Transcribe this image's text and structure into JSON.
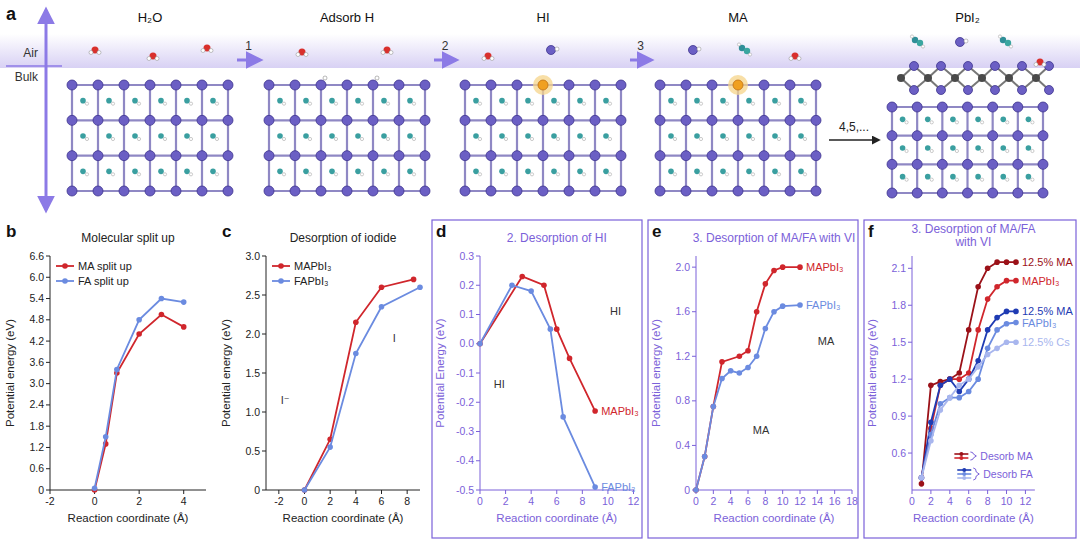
{
  "schematic": {
    "panel": "a",
    "air": "Air",
    "bulk": "Bulk",
    "stages": [
      "H₂O",
      "Adsorb H",
      "HI",
      "MA",
      "PbI₂"
    ],
    "steps": [
      "1",
      "2",
      "3",
      "4,5,..."
    ]
  },
  "chart_data": [
    {
      "panel": "b",
      "type": "line",
      "title": "Molecular split up",
      "x_label": "Reaction coordinate (Å)",
      "y_label": "Potential energy (eV)",
      "xlim": [
        -2,
        5
      ],
      "ylim": [
        0,
        6.6
      ],
      "xticks": [
        -2,
        0,
        2,
        4
      ],
      "yticks": [
        0,
        0.6,
        1.2,
        1.8,
        2.4,
        {
          "value": 3,
          "label": "3.0"
        },
        3.6,
        4.2,
        4.8,
        5.4,
        {
          "value": 6,
          "label": "6.0"
        },
        6.6
      ],
      "legend": "upper left",
      "marker": "circle",
      "series": [
        {
          "name": "MA split up",
          "color": "#d0262c",
          "x": [
            0,
            0.5,
            1,
            2,
            3,
            4
          ],
          "values": [
            0,
            1.3,
            3.3,
            4.4,
            4.95,
            4.6
          ]
        },
        {
          "name": "FA split up",
          "color": "#6b8be0",
          "x": [
            0,
            0.5,
            1,
            2,
            3,
            4
          ],
          "values": [
            0.05,
            1.5,
            3.4,
            4.8,
            5.4,
            5.3
          ]
        }
      ]
    },
    {
      "panel": "c",
      "type": "line",
      "title": "Desorption of iodide",
      "x_label": "Reaction coordinate (Å)",
      "y_label": "Potential energy (eV)",
      "xlim": [
        -3,
        9
      ],
      "ylim": [
        0,
        3
      ],
      "xticks": [
        -2,
        0,
        2,
        4,
        6,
        8
      ],
      "yticks": [
        0,
        0.5,
        {
          "value": 1,
          "label": "1.0"
        },
        1.5,
        {
          "value": 2,
          "label": "2.0"
        },
        2.5,
        {
          "value": 3,
          "label": "3.0"
        }
      ],
      "legend": "upper left",
      "marker": "circle",
      "series": [
        {
          "name": "MAPbI₃",
          "color": "#d0262c",
          "x": [
            0,
            2,
            4,
            6,
            8.5
          ],
          "values": [
            0,
            0.65,
            2.15,
            2.6,
            2.7
          ]
        },
        {
          "name": "FAPbI₃",
          "color": "#6b8be0",
          "x": [
            0,
            2,
            4,
            6,
            9
          ],
          "values": [
            0,
            0.55,
            1.75,
            2.35,
            2.6
          ]
        }
      ],
      "annotations": [
        {
          "text": "I⁻",
          "x": -1.5,
          "y": 1.1
        },
        {
          "text": "I",
          "x": 7,
          "y": 1.9
        }
      ]
    },
    {
      "panel": "d",
      "type": "line",
      "title": "2. Desorption of HI",
      "x_label": "Reaction coordinate (Å)",
      "y_label": "Potential Energy (eV)",
      "color": "#7b61d9",
      "xlim": [
        0,
        12
      ],
      "ylim": [
        -0.5,
        0.3
      ],
      "xticks": [
        0,
        2,
        4,
        6,
        8,
        10,
        12
      ],
      "yticks": [
        -0.5,
        -0.4,
        -0.3,
        -0.2,
        -0.1,
        {
          "value": 0,
          "label": "0.0"
        },
        0.1,
        0.2,
        0.3
      ],
      "legend": "inline",
      "marker": "circle",
      "series": [
        {
          "name": "MAPbI₃",
          "color": "#d0262c",
          "x": [
            0,
            3.3,
            5,
            6,
            7,
            9
          ],
          "values": [
            0,
            0.23,
            0.2,
            0.05,
            -0.05,
            -0.23
          ]
        },
        {
          "name": "FAPbI₃",
          "color": "#6b8be0",
          "x": [
            0,
            2.5,
            4,
            5.5,
            6.5,
            9
          ],
          "values": [
            0,
            0.2,
            0.18,
            0.05,
            -0.25,
            -0.49
          ]
        }
      ],
      "annotations": [
        {
          "text": "HI",
          "x": 1.5,
          "y": -0.15
        },
        {
          "text": "HI",
          "x": 10.6,
          "y": 0.1
        }
      ]
    },
    {
      "panel": "e",
      "type": "line",
      "title": "3. Desorption of MA/FA with VI",
      "x_label": "Reaction coordinate (Å)",
      "y_label": "Potential energy (eV)",
      "color": "#7b61d9",
      "xlim": [
        0,
        18
      ],
      "ylim": [
        0,
        2.1
      ],
      "xticks": [
        0,
        2,
        4,
        6,
        8,
        10,
        12,
        14,
        16,
        18
      ],
      "yticks": [
        0,
        0.4,
        0.8,
        1.2,
        1.6,
        {
          "value": 2,
          "label": "2.0"
        }
      ],
      "legend": "inline",
      "marker": "circle",
      "series": [
        {
          "name": "MAPbI₃",
          "color": "#d0262c",
          "x": [
            0,
            1,
            2,
            3,
            5,
            6,
            7,
            8,
            9,
            10,
            12
          ],
          "values": [
            0,
            0.3,
            0.75,
            1.15,
            1.2,
            1.25,
            1.6,
            1.85,
            1.97,
            2.0,
            2.0
          ]
        },
        {
          "name": "FAPbI₃",
          "color": "#6b8be0",
          "x": [
            0,
            1,
            2,
            3,
            4,
            5,
            6,
            7,
            8,
            9,
            10,
            12
          ],
          "values": [
            0,
            0.3,
            0.75,
            1.0,
            1.07,
            1.05,
            1.1,
            1.2,
            1.45,
            1.6,
            1.65,
            1.66
          ]
        }
      ],
      "annotations": [
        {
          "text": "MA",
          "x": 15,
          "y": 1.3
        },
        {
          "text": "MA",
          "x": 7.5,
          "y": 0.5
        }
      ]
    },
    {
      "panel": "f",
      "type": "line",
      "title": "3. Desorption of MA/FA with VI",
      "x_label": "Reaction coordinate (Å)",
      "y_label": "Potential energy (eV)",
      "color": "#7b61d9",
      "xlim": [
        0,
        13
      ],
      "ylim": [
        0.3,
        2.2
      ],
      "xticks": [
        0,
        2,
        4,
        6,
        8,
        10,
        12
      ],
      "yticks": [
        0.6,
        0.9,
        1.2,
        1.5,
        1.8,
        2.1
      ],
      "legend": "lower right",
      "marker": "circle",
      "legend_groups": [
        {
          "label": "Desorb MA",
          "series": [
            0,
            1
          ]
        },
        {
          "label": "Desorb FA",
          "series": [
            2,
            3,
            4
          ]
        }
      ],
      "series": [
        {
          "name": "12.5% MA",
          "color": "#9b1118",
          "x": [
            1,
            2,
            3,
            4,
            5,
            6,
            7,
            8,
            9,
            10,
            11
          ],
          "values": [
            0.35,
            1.15,
            1.18,
            1.2,
            1.25,
            1.6,
            1.95,
            2.1,
            2.15,
            2.15,
            2.15
          ]
        },
        {
          "name": "MAPbI₃",
          "color": "#d0262c",
          "x": [
            1,
            2,
            3,
            4,
            5,
            6,
            7,
            8,
            9,
            10,
            11
          ],
          "values": [
            0.4,
            0.8,
            1.15,
            1.2,
            1.2,
            1.25,
            1.6,
            1.85,
            1.95,
            2.0,
            2.0
          ]
        },
        {
          "name": "12.5% MA",
          "color": "#1f3bb3",
          "x": [
            1,
            2,
            3,
            4,
            5,
            6,
            7,
            8,
            9,
            10,
            11
          ],
          "values": [
            0.4,
            0.85,
            1.15,
            1.2,
            1.1,
            1.2,
            1.35,
            1.6,
            1.7,
            1.75,
            1.75
          ]
        },
        {
          "name": "FAPbI₃",
          "color": "#6b8be0",
          "x": [
            1,
            2,
            3,
            4,
            5,
            6,
            7,
            8,
            9,
            10,
            11
          ],
          "values": [
            0.4,
            0.75,
            1.0,
            1.05,
            1.05,
            1.1,
            1.2,
            1.45,
            1.6,
            1.65,
            1.66
          ]
        },
        {
          "name": "12.5% Cs",
          "color": "#a8b6ee",
          "x": [
            1,
            2,
            3,
            4,
            5,
            6,
            7,
            8,
            9,
            10,
            11
          ],
          "values": [
            0.4,
            0.7,
            0.95,
            1.05,
            1.15,
            1.2,
            1.3,
            1.4,
            1.45,
            1.5,
            1.5
          ]
        }
      ]
    }
  ]
}
